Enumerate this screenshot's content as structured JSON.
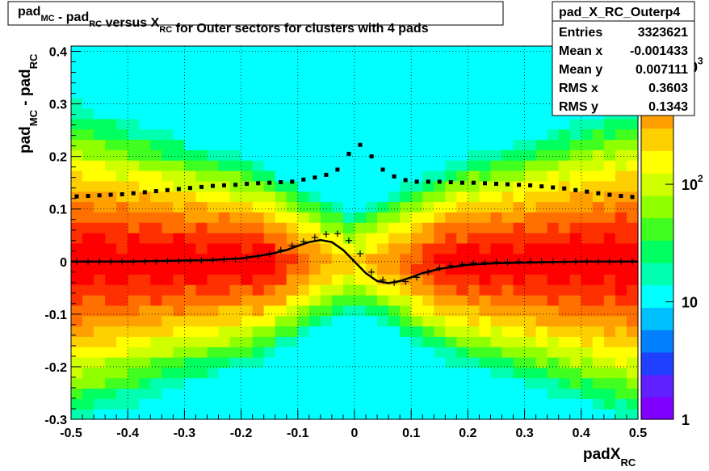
{
  "chart_data": {
    "type": "heatmap",
    "title": {
      "parts": [
        {
          "t": "pad"
        },
        {
          "t": "MC",
          "sub": true
        },
        {
          "t": " - pad"
        },
        {
          "t": "RC",
          "sub": true
        },
        {
          "t": " versus X"
        },
        {
          "t": "RC",
          "sub": true
        },
        {
          "t": " for Outer sectors for clusters with 4 pads"
        }
      ]
    },
    "xlabel": {
      "main": "padX",
      "sub": "RC"
    },
    "ylabel": {
      "main1": "pad",
      "sub1": "MC",
      "main2": " - pad",
      "sub2": "RC"
    },
    "xlim": [
      -0.5,
      0.5
    ],
    "ylim": [
      -0.3,
      0.41
    ],
    "x_ticks": [
      -0.5,
      -0.4,
      -0.3,
      -0.2,
      -0.1,
      0,
      0.1,
      0.2,
      0.3,
      0.4,
      0.5
    ],
    "x_tick_labels": [
      "-0.5",
      "-0.4",
      "-0.3",
      "-0.2",
      "-0.1",
      "0",
      "0.1",
      "0.2",
      "0.3",
      "0.4",
      "0.5"
    ],
    "y_ticks": [
      -0.3,
      -0.2,
      -0.1,
      0,
      0.1,
      0.2,
      0.3,
      0.4
    ],
    "y_tick_labels": [
      "-0.3",
      "-0.2",
      "-0.1",
      "0",
      "0.1",
      "0.2",
      "0.3",
      "0.4"
    ],
    "grid": true,
    "z_scale": "log",
    "z_range": [
      1,
      1500
    ],
    "z_tick_labels": [
      {
        "value": 1,
        "label": "1",
        "exp": ""
      },
      {
        "value": 10,
        "label": "10",
        "exp": ""
      },
      {
        "value": 100,
        "label": "10",
        "exp": "2"
      },
      {
        "value": 1000,
        "label": "10",
        "exp": "3"
      }
    ],
    "palette": [
      "#8000ff",
      "#6020ff",
      "#2040ff",
      "#0080ff",
      "#00c0ff",
      "#00ffff",
      "#00ffb0",
      "#00ff60",
      "#40ff20",
      "#90ff00",
      "#d0ff00",
      "#ffff00",
      "#ffd000",
      "#ffa000",
      "#ff7000",
      "#ff3000",
      "#ff0000"
    ],
    "rms_profile": {
      "x": [
        -0.49,
        -0.47,
        -0.45,
        -0.43,
        -0.41,
        -0.39,
        -0.37,
        -0.35,
        -0.33,
        -0.31,
        -0.29,
        -0.27,
        -0.25,
        -0.23,
        -0.21,
        -0.19,
        -0.17,
        -0.15,
        -0.13,
        -0.11,
        -0.09,
        -0.07,
        -0.05,
        -0.03,
        -0.01,
        0.01,
        0.03,
        0.05,
        0.07,
        0.09,
        0.11,
        0.13,
        0.15,
        0.17,
        0.19,
        0.21,
        0.23,
        0.25,
        0.27,
        0.29,
        0.31,
        0.33,
        0.35,
        0.37,
        0.39,
        0.41,
        0.43,
        0.45,
        0.47,
        0.49
      ],
      "y": [
        0.124,
        0.125,
        0.126,
        0.127,
        0.128,
        0.13,
        0.132,
        0.134,
        0.136,
        0.138,
        0.14,
        0.142,
        0.144,
        0.145,
        0.146,
        0.148,
        0.149,
        0.15,
        0.151,
        0.152,
        0.156,
        0.16,
        0.165,
        0.175,
        0.205,
        0.222,
        0.2,
        0.175,
        0.162,
        0.155,
        0.152,
        0.152,
        0.152,
        0.151,
        0.15,
        0.15,
        0.149,
        0.148,
        0.147,
        0.146,
        0.145,
        0.143,
        0.141,
        0.139,
        0.136,
        0.133,
        0.13,
        0.127,
        0.125,
        0.123
      ]
    },
    "mean_profile": {
      "x": [
        -0.49,
        -0.47,
        -0.45,
        -0.43,
        -0.41,
        -0.39,
        -0.37,
        -0.35,
        -0.33,
        -0.31,
        -0.29,
        -0.27,
        -0.25,
        -0.23,
        -0.21,
        -0.19,
        -0.17,
        -0.15,
        -0.13,
        -0.11,
        -0.09,
        -0.07,
        -0.05,
        -0.03,
        -0.01,
        0.01,
        0.03,
        0.05,
        0.07,
        0.09,
        0.11,
        0.13,
        0.15,
        0.17,
        0.19,
        0.21,
        0.23,
        0.25,
        0.27,
        0.29,
        0.31,
        0.33,
        0.35,
        0.37,
        0.39,
        0.41,
        0.43,
        0.45,
        0.47,
        0.49
      ],
      "y": [
        0.0,
        0.0,
        0.0,
        0.0,
        0.0,
        0.0,
        0.0,
        0.0,
        0.001,
        0.001,
        0.002,
        0.002,
        0.003,
        0.004,
        0.005,
        0.007,
        0.01,
        0.015,
        0.022,
        0.03,
        0.038,
        0.046,
        0.052,
        0.053,
        0.04,
        0.015,
        -0.02,
        -0.035,
        -0.04,
        -0.038,
        -0.03,
        -0.02,
        -0.012,
        -0.008,
        -0.005,
        -0.003,
        -0.002,
        -0.001,
        -0.001,
        0.0,
        0.0,
        0.0,
        0.0,
        0.0,
        0.0,
        0.0,
        0.0,
        0.0,
        0.0,
        0.0
      ]
    },
    "fit_curve": {
      "x": [
        -0.5,
        -0.45,
        -0.4,
        -0.35,
        -0.3,
        -0.25,
        -0.2,
        -0.15,
        -0.12,
        -0.1,
        -0.08,
        -0.06,
        -0.04,
        -0.02,
        0.0,
        0.02,
        0.04,
        0.06,
        0.08,
        0.1,
        0.12,
        0.15,
        0.2,
        0.25,
        0.3,
        0.35,
        0.4,
        0.45,
        0.5
      ],
      "y": [
        0.0,
        0.0,
        0.0,
        0.001,
        0.002,
        0.003,
        0.006,
        0.014,
        0.022,
        0.03,
        0.037,
        0.041,
        0.037,
        0.022,
        0.0,
        -0.022,
        -0.037,
        -0.041,
        -0.037,
        -0.03,
        -0.022,
        -0.014,
        -0.006,
        -0.003,
        -0.002,
        -0.001,
        0.0,
        0.0,
        0.0
      ]
    },
    "stats_box": {
      "name": "pad_X_RC_Outerp4",
      "rows": [
        {
          "label": "Entries",
          "value": "3323621"
        },
        {
          "label": "Mean x",
          "value": "-0.001433"
        },
        {
          "label": "Mean y",
          "value": "0.007111"
        },
        {
          "label": "RMS x",
          "value": "0.3603"
        },
        {
          "label": "RMS y",
          "value": "0.1343"
        }
      ]
    }
  }
}
